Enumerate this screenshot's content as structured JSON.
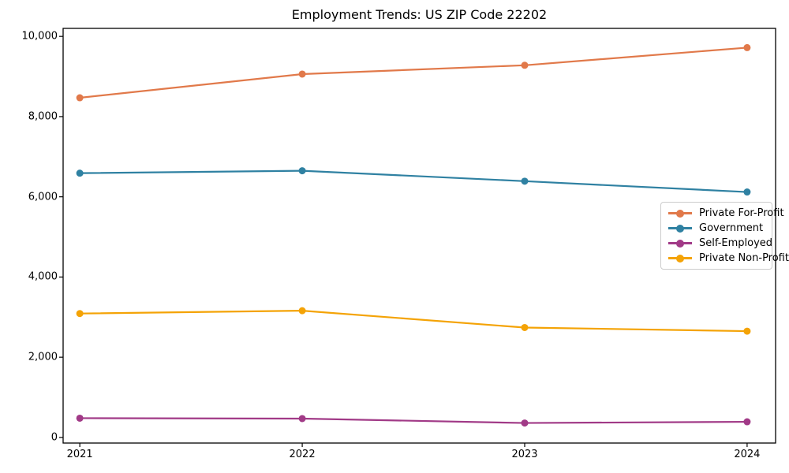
{
  "chart_data": {
    "type": "line",
    "title": "Employment Trends: US ZIP Code 22202",
    "xlabel": "",
    "ylabel": "",
    "grid": false,
    "legend_position": "center right",
    "x": [
      2021,
      2022,
      2023,
      2024
    ],
    "x_tick_labels": [
      "2021",
      "2022",
      "2023",
      "2024"
    ],
    "xlim": [
      2020.925,
      2024.128
    ],
    "y_ticks": [
      0,
      2000,
      4000,
      6000,
      8000,
      10000
    ],
    "y_tick_labels": [
      "0",
      "2,000",
      "4,000",
      "6,000",
      "8,000",
      "10,000"
    ],
    "ylim": [
      -140,
      10200
    ],
    "series": [
      {
        "name": "Private For-Profit",
        "color": "#e1794a",
        "values": [
          8470,
          9060,
          9280,
          9720
        ]
      },
      {
        "name": "Government",
        "color": "#2f81a2",
        "values": [
          6590,
          6650,
          6390,
          6120
        ]
      },
      {
        "name": "Self-Employed",
        "color": "#a13a87",
        "values": [
          480,
          470,
          360,
          390
        ]
      },
      {
        "name": "Private Non-Profit",
        "color": "#f4a306",
        "values": [
          3090,
          3160,
          2740,
          2650
        ]
      }
    ]
  }
}
